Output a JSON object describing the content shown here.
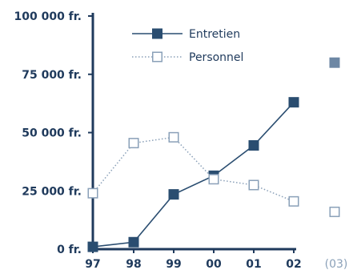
{
  "chart_data": {
    "type": "line",
    "categories": [
      "97",
      "98",
      "99",
      "00",
      "01",
      "02",
      "(03)"
    ],
    "y_tick_labels": [
      "100 000 fr.",
      "75 000 fr.",
      "50 000 fr.",
      "25 000 fr.",
      "0 fr."
    ],
    "y_tick_values": [
      100000,
      75000,
      50000,
      25000,
      0
    ],
    "ylim": [
      0,
      100000
    ],
    "grid": false,
    "legend_position": "top-center",
    "series": [
      {
        "name": "Entretien",
        "marker": "filled-square",
        "line_style": "solid",
        "color": "#2a4d70",
        "projected_color": "#6d87a4",
        "values": [
          1000,
          3000,
          23500,
          31500,
          44500,
          63000,
          80000
        ]
      },
      {
        "name": "Personnel",
        "marker": "hollow-square",
        "line_style": "dotted",
        "color": "#8aa0b8",
        "values": [
          24000,
          45500,
          48000,
          30000,
          27500,
          20500,
          16000
        ]
      }
    ],
    "projected_category": "(03)",
    "axis_color": "#1f3a5c"
  }
}
